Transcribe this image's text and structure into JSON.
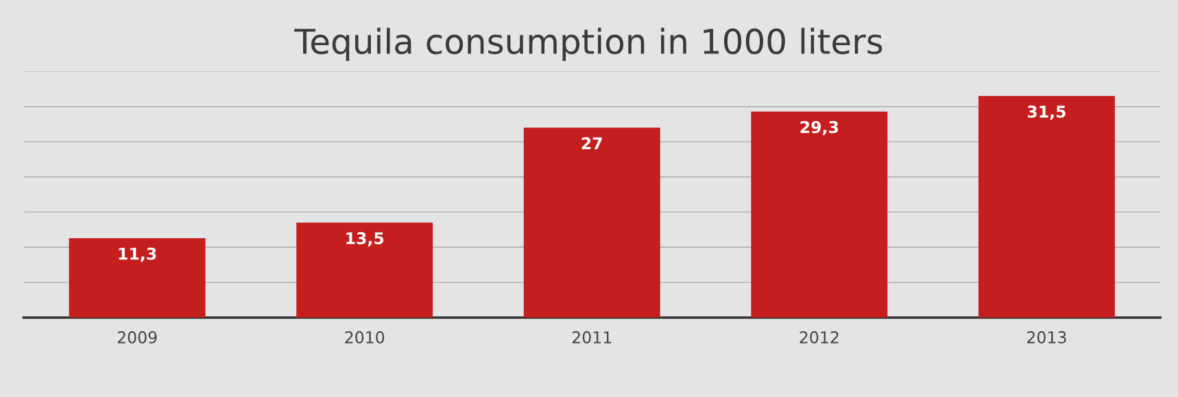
{
  "chart_data": {
    "type": "bar",
    "title": "Tequila consumption in 1000 liters",
    "categories": [
      "2009",
      "2010",
      "2011",
      "2012",
      "2013"
    ],
    "values": [
      11.3,
      13.5,
      27,
      29.3,
      31.5
    ],
    "value_labels": [
      "11,3",
      "13,5",
      "27",
      "29,3",
      "31,5"
    ],
    "color": "#c41e1e",
    "ylim": [
      0,
      35
    ],
    "yticks": [
      {
        "value": 0,
        "label": null
      },
      {
        "value": 5,
        "label": null
      },
      {
        "value": 10,
        "label": null
      },
      {
        "value": 15,
        "label": null
      },
      {
        "value": 20,
        "label": null
      },
      {
        "value": 25,
        "label": null
      },
      {
        "value": 30,
        "label": null
      },
      {
        "value": 35,
        "label": null
      }
    ],
    "tick_labels": "x",
    "grid": "y"
  }
}
